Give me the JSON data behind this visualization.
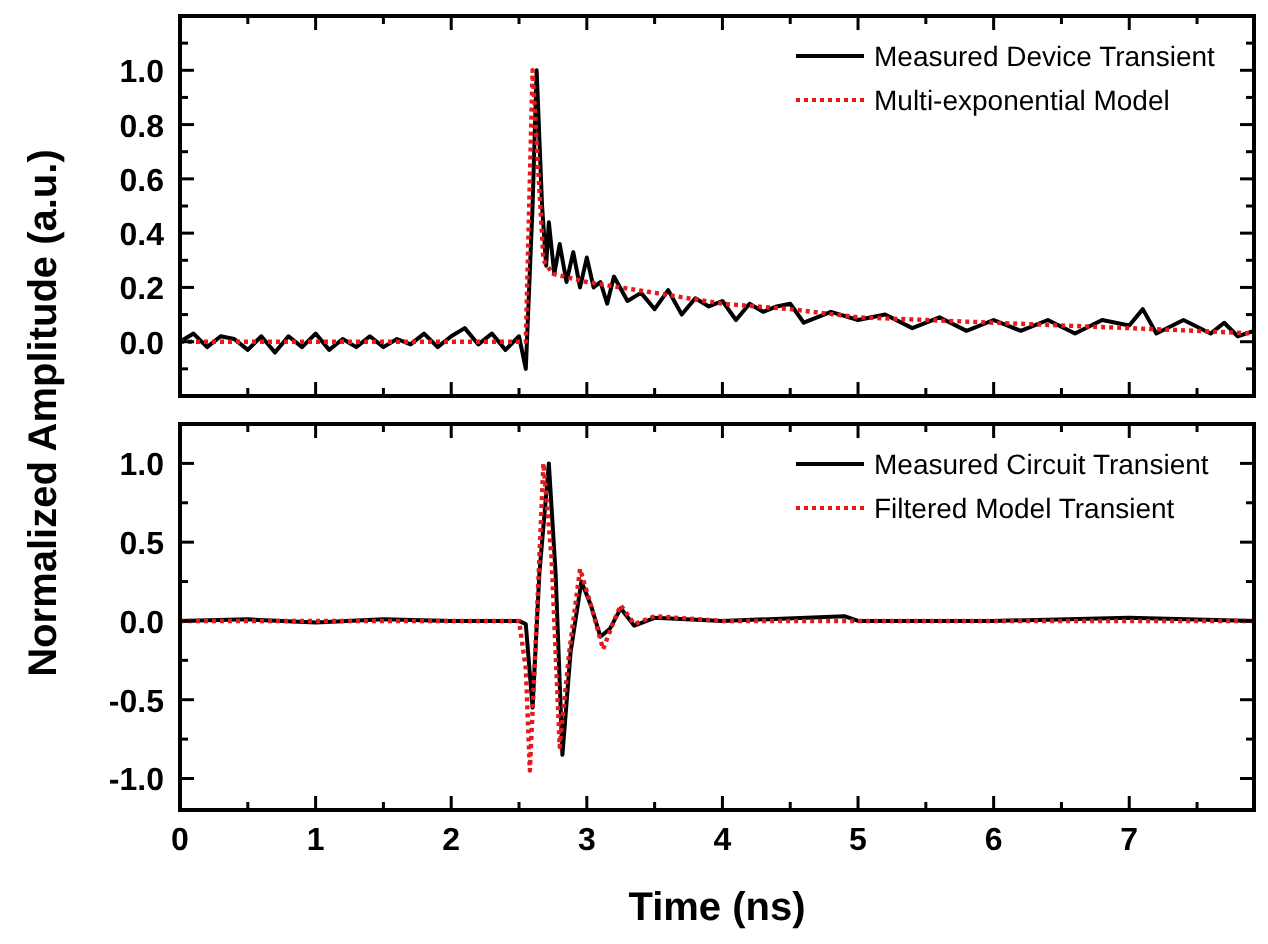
{
  "chart_data": [
    {
      "type": "line",
      "ylabel": "Normalized Amplitude (a.u.)",
      "xlim": [
        0,
        7.92
      ],
      "ylim": [
        -0.2,
        1.2
      ],
      "xticks": [
        0,
        {
          "value": 0.5,
          "label": null
        },
        1,
        {
          "value": 1.5,
          "label": null
        },
        2,
        {
          "value": 2.5,
          "label": null
        },
        3,
        {
          "value": 3.5,
          "label": null
        },
        4,
        {
          "value": 4.5,
          "label": null
        },
        5,
        {
          "value": 5.5,
          "label": null
        },
        6,
        {
          "value": 6.5,
          "label": null
        },
        7,
        {
          "value": 7.5,
          "label": null
        }
      ],
      "yticks": [
        {
          "value": -0.1,
          "label": null
        },
        {
          "value": 0,
          "label": "0.0"
        },
        {
          "value": 0.1,
          "label": null
        },
        0.2,
        {
          "value": 0.3,
          "label": null
        },
        0.4,
        {
          "value": 0.5,
          "label": null
        },
        0.6,
        {
          "value": 0.7,
          "label": null
        },
        0.8,
        {
          "value": 0.9,
          "label": null
        },
        {
          "value": 1,
          "label": "1.0"
        },
        {
          "value": 1.1,
          "label": null
        }
      ],
      "tick_labels": "y",
      "legend": "top right",
      "grid": false,
      "series": [
        {
          "name": "Measured Device Transient",
          "color": "#000000",
          "line_style": "solid",
          "x": [
            0,
            0.1,
            0.2,
            0.3,
            0.4,
            0.5,
            0.6,
            0.7,
            0.8,
            0.9,
            1.0,
            1.1,
            1.2,
            1.3,
            1.4,
            1.5,
            1.6,
            1.7,
            1.8,
            1.9,
            2.0,
            2.1,
            2.2,
            2.3,
            2.4,
            2.5,
            2.55,
            2.6,
            2.63,
            2.67,
            2.7,
            2.72,
            2.76,
            2.8,
            2.85,
            2.9,
            2.95,
            3.0,
            3.05,
            3.1,
            3.15,
            3.2,
            3.3,
            3.4,
            3.5,
            3.6,
            3.7,
            3.8,
            3.9,
            4.0,
            4.1,
            4.2,
            4.3,
            4.4,
            4.5,
            4.6,
            4.8,
            5.0,
            5.2,
            5.4,
            5.6,
            5.8,
            6.0,
            6.2,
            6.4,
            6.6,
            6.8,
            7.0,
            7.1,
            7.2,
            7.4,
            7.6,
            7.7,
            7.8,
            7.92
          ],
          "values": [
            0,
            0.03,
            -0.02,
            0.02,
            0.01,
            -0.03,
            0.02,
            -0.04,
            0.02,
            -0.02,
            0.03,
            -0.03,
            0.01,
            -0.02,
            0.02,
            -0.02,
            0.01,
            -0.01,
            0.03,
            -0.02,
            0.02,
            0.05,
            -0.01,
            0.03,
            -0.03,
            0.02,
            -0.1,
            0.5,
            1.0,
            0.5,
            0.28,
            0.44,
            0.25,
            0.36,
            0.22,
            0.33,
            0.2,
            0.31,
            0.2,
            0.22,
            0.14,
            0.24,
            0.15,
            0.18,
            0.12,
            0.19,
            0.1,
            0.16,
            0.13,
            0.15,
            0.08,
            0.14,
            0.11,
            0.13,
            0.14,
            0.07,
            0.11,
            0.08,
            0.1,
            0.05,
            0.09,
            0.04,
            0.08,
            0.04,
            0.08,
            0.03,
            0.08,
            0.06,
            0.12,
            0.03,
            0.08,
            0.03,
            0.07,
            0.02,
            0.04
          ]
        },
        {
          "name": "Multi-exponential Model",
          "color": "#e41a1c",
          "line_style": "dotted",
          "x": [
            0,
            2.55,
            2.6,
            2.68,
            2.75,
            3.0,
            3.5,
            4.0,
            4.5,
            5.0,
            5.5,
            6.0,
            6.5,
            7.0,
            7.5,
            7.92
          ],
          "values": [
            0,
            0,
            1.0,
            0.3,
            0.25,
            0.22,
            0.18,
            0.14,
            0.12,
            0.09,
            0.08,
            0.07,
            0.06,
            0.05,
            0.04,
            0.03
          ]
        }
      ]
    },
    {
      "type": "line",
      "xlabel": "Time (ns)",
      "xlim": [
        0,
        7.92
      ],
      "ylim": [
        -1.2,
        1.25
      ],
      "xticks": [
        0,
        {
          "value": 0.5,
          "label": null
        },
        1,
        {
          "value": 1.5,
          "label": null
        },
        2,
        {
          "value": 2.5,
          "label": null
        },
        3,
        {
          "value": 3.5,
          "label": null
        },
        4,
        {
          "value": 4.5,
          "label": null
        },
        5,
        {
          "value": 5.5,
          "label": null
        },
        6,
        {
          "value": 6.5,
          "label": null
        },
        7,
        {
          "value": 7.5,
          "label": null
        }
      ],
      "yticks": [
        {
          "value": -1,
          "label": "-1.0"
        },
        {
          "value": -0.75,
          "label": null
        },
        -0.5,
        {
          "value": -0.25,
          "label": null
        },
        {
          "value": 0,
          "label": "0.0"
        },
        {
          "value": 0.25,
          "label": null
        },
        0.5,
        {
          "value": 0.75,
          "label": null
        },
        {
          "value": 1,
          "label": "1.0"
        }
      ],
      "legend": "top right",
      "grid": false,
      "series": [
        {
          "name": "Measured Circuit Transient",
          "color": "#000000",
          "line_style": "solid",
          "x": [
            0,
            0.5,
            1,
            1.5,
            2,
            2.5,
            2.55,
            2.6,
            2.65,
            2.72,
            2.77,
            2.82,
            2.88,
            2.96,
            3.03,
            3.1,
            3.17,
            3.25,
            3.35,
            3.5,
            4,
            4.9,
            5,
            6,
            7,
            7.92
          ],
          "values": [
            0,
            0.01,
            -0.01,
            0.01,
            0,
            0,
            -0.02,
            -0.55,
            0.3,
            1.0,
            0.3,
            -0.85,
            -0.2,
            0.25,
            0.1,
            -0.1,
            -0.05,
            0.08,
            -0.03,
            0.02,
            0,
            0.03,
            0,
            0,
            0.02,
            0
          ]
        },
        {
          "name": "Filtered Model Transient",
          "color": "#e41a1c",
          "line_style": "dotted",
          "x": [
            0,
            2.5,
            2.55,
            2.58,
            2.63,
            2.68,
            2.74,
            2.8,
            2.87,
            2.95,
            3.03,
            3.12,
            3.2,
            3.25,
            3.35,
            3.5,
            4,
            7.92
          ],
          "values": [
            0,
            0,
            -0.3,
            -0.95,
            0,
            1.0,
            0.4,
            -0.8,
            -0.2,
            0.33,
            0.1,
            -0.18,
            0,
            0.1,
            -0.02,
            0.03,
            0,
            0
          ]
        }
      ]
    }
  ]
}
